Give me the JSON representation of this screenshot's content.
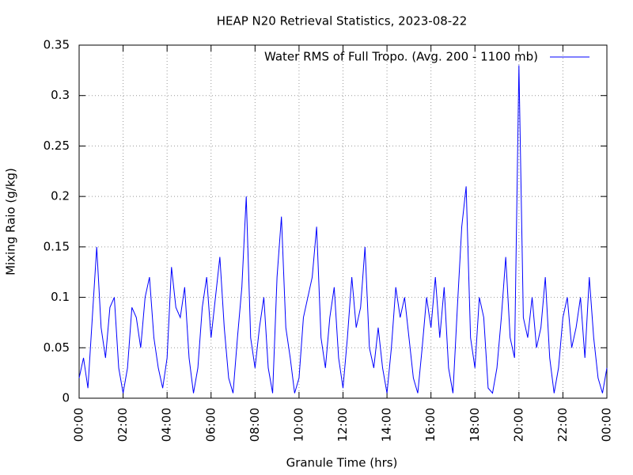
{
  "chart_data": {
    "type": "line",
    "title": "HEAP N20 Retrieval Statistics, 2023-08-22",
    "x_label": "Granule Time (hrs)",
    "y_label": "Mixing Raio (g/kg)",
    "legend_position": "upper-right",
    "grid": true,
    "xlim": [
      0,
      24
    ],
    "xticks": [
      {
        "value": 0,
        "label": "00:00"
      },
      {
        "value": 2,
        "label": "02:00"
      },
      {
        "value": 4,
        "label": "04:00"
      },
      {
        "value": 6,
        "label": "06:00"
      },
      {
        "value": 8,
        "label": "08:00"
      },
      {
        "value": 10,
        "label": "10:00"
      },
      {
        "value": 12,
        "label": "12:00"
      },
      {
        "value": 14,
        "label": "14:00"
      },
      {
        "value": 16,
        "label": "16:00"
      },
      {
        "value": 18,
        "label": "18:00"
      },
      {
        "value": 20,
        "label": "20:00"
      },
      {
        "value": 22,
        "label": "22:00"
      },
      {
        "value": 24,
        "label": "00:00"
      }
    ],
    "ylim": [
      0,
      0.35
    ],
    "yticks": [
      0,
      0.05,
      0.1,
      0.15,
      0.2,
      0.25,
      0.3,
      0.35
    ],
    "x": [
      0,
      0.2,
      0.4,
      0.6,
      0.8,
      1.0,
      1.2,
      1.4,
      1.6,
      1.8,
      2.0,
      2.2,
      2.4,
      2.6,
      2.8,
      3.0,
      3.2,
      3.4,
      3.6,
      3.8,
      4.0,
      4.2,
      4.4,
      4.6,
      4.8,
      5.0,
      5.2,
      5.4,
      5.6,
      5.8,
      6.0,
      6.2,
      6.4,
      6.6,
      6.8,
      7.0,
      7.2,
      7.4,
      7.6,
      7.8,
      8.0,
      8.2,
      8.4,
      8.6,
      8.8,
      9.0,
      9.2,
      9.4,
      9.6,
      9.8,
      10.0,
      10.2,
      10.4,
      10.6,
      10.8,
      11.0,
      11.2,
      11.4,
      11.6,
      11.8,
      12.0,
      12.2,
      12.4,
      12.6,
      12.8,
      13.0,
      13.2,
      13.4,
      13.6,
      13.8,
      14.0,
      14.2,
      14.4,
      14.6,
      14.8,
      15.0,
      15.2,
      15.4,
      15.6,
      15.8,
      16.0,
      16.2,
      16.4,
      16.6,
      16.8,
      17.0,
      17.2,
      17.4,
      17.6,
      17.8,
      18.0,
      18.2,
      18.4,
      18.6,
      18.8,
      19.0,
      19.2,
      19.4,
      19.6,
      19.8,
      20.0,
      20.2,
      20.4,
      20.6,
      20.8,
      21.0,
      21.2,
      21.4,
      21.6,
      21.8,
      22.0,
      22.2,
      22.4,
      22.6,
      22.8,
      23.0,
      23.2,
      23.4,
      23.6,
      23.8,
      24.0
    ],
    "series": [
      {
        "name": "Water RMS of Full Tropo. (Avg. 200 - 1100 mb)",
        "color": "#0000ff",
        "values": [
          0.02,
          0.04,
          0.01,
          0.08,
          0.15,
          0.07,
          0.04,
          0.09,
          0.1,
          0.03,
          0.005,
          0.03,
          0.09,
          0.08,
          0.05,
          0.1,
          0.12,
          0.06,
          0.03,
          0.01,
          0.04,
          0.13,
          0.09,
          0.08,
          0.11,
          0.04,
          0.005,
          0.03,
          0.09,
          0.12,
          0.06,
          0.1,
          0.14,
          0.07,
          0.02,
          0.005,
          0.06,
          0.11,
          0.2,
          0.06,
          0.03,
          0.07,
          0.1,
          0.03,
          0.005,
          0.12,
          0.18,
          0.07,
          0.04,
          0.005,
          0.02,
          0.08,
          0.1,
          0.12,
          0.17,
          0.06,
          0.03,
          0.08,
          0.11,
          0.04,
          0.01,
          0.06,
          0.12,
          0.07,
          0.09,
          0.15,
          0.05,
          0.03,
          0.07,
          0.03,
          0.005,
          0.05,
          0.11,
          0.08,
          0.1,
          0.06,
          0.02,
          0.005,
          0.05,
          0.1,
          0.07,
          0.12,
          0.06,
          0.11,
          0.03,
          0.005,
          0.09,
          0.17,
          0.21,
          0.06,
          0.03,
          0.1,
          0.08,
          0.01,
          0.005,
          0.03,
          0.08,
          0.14,
          0.06,
          0.04,
          0.33,
          0.08,
          0.06,
          0.1,
          0.05,
          0.07,
          0.12,
          0.04,
          0.005,
          0.03,
          0.08,
          0.1,
          0.05,
          0.07,
          0.1,
          0.04,
          0.12,
          0.06,
          0.02,
          0.005,
          0.03
        ]
      }
    ]
  }
}
